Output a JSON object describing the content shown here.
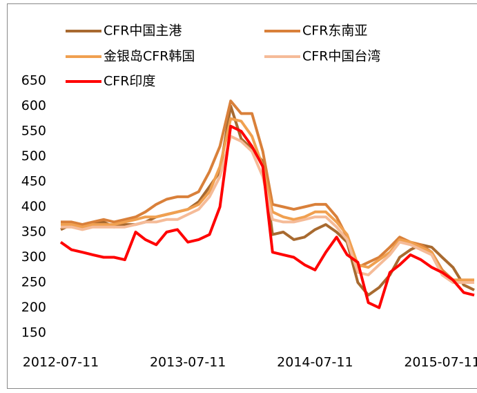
{
  "chart_data": {
    "type": "line",
    "x": [
      "2012-07-11",
      "2012-08-11",
      "2012-09-11",
      "2012-10-11",
      "2012-11-11",
      "2012-12-11",
      "2013-01-11",
      "2013-02-11",
      "2013-03-11",
      "2013-04-11",
      "2013-05-11",
      "2013-06-11",
      "2013-07-11",
      "2013-08-11",
      "2013-09-11",
      "2013-10-11",
      "2013-11-11",
      "2013-12-11",
      "2014-01-11",
      "2014-02-11",
      "2014-03-11",
      "2014-04-11",
      "2014-05-11",
      "2014-06-11",
      "2014-07-11",
      "2014-08-11",
      "2014-09-11",
      "2014-10-11",
      "2014-11-11",
      "2014-12-11",
      "2015-01-11",
      "2015-02-11",
      "2015-03-11",
      "2015-04-11",
      "2015-05-11",
      "2015-06-11",
      "2015-07-11",
      "2015-08-11",
      "2015-09-11",
      "2015-10-11"
    ],
    "series": [
      {
        "name": "CFR中国主港",
        "color": "#a86a30",
        "values": [
          355,
          365,
          365,
          365,
          370,
          360,
          365,
          365,
          370,
          380,
          385,
          390,
          395,
          410,
          440,
          470,
          600,
          535,
          515,
          490,
          345,
          350,
          335,
          340,
          355,
          365,
          350,
          330,
          250,
          225,
          240,
          265,
          300,
          315,
          325,
          320,
          300,
          280,
          245,
          235
        ]
      },
      {
        "name": "CFR东南亚",
        "color": "#d9803a",
        "values": [
          370,
          370,
          365,
          370,
          375,
          370,
          375,
          380,
          390,
          405,
          415,
          420,
          420,
          430,
          470,
          520,
          610,
          585,
          585,
          510,
          405,
          400,
          395,
          400,
          405,
          405,
          380,
          340,
          280,
          290,
          300,
          320,
          340,
          330,
          325,
          310,
          275,
          255,
          255,
          255
        ]
      },
      {
        "name": "金银岛CFR韩国",
        "color": "#f0a050",
        "values": [
          365,
          365,
          360,
          365,
          365,
          365,
          370,
          375,
          380,
          380,
          385,
          390,
          395,
          405,
          430,
          480,
          575,
          570,
          540,
          480,
          390,
          380,
          375,
          380,
          390,
          390,
          370,
          345,
          285,
          280,
          295,
          310,
          335,
          330,
          320,
          310,
          270,
          255,
          255,
          255
        ]
      },
      {
        "name": "CFR中国台湾",
        "color": "#f5bb98",
        "values": [
          360,
          360,
          355,
          360,
          360,
          360,
          360,
          365,
          370,
          370,
          375,
          375,
          385,
          395,
          420,
          460,
          540,
          530,
          510,
          460,
          375,
          370,
          370,
          375,
          380,
          380,
          360,
          335,
          270,
          265,
          285,
          305,
          330,
          325,
          315,
          305,
          265,
          250,
          250,
          250
        ]
      },
      {
        "name": "CFR印度",
        "color": "#ff0000",
        "values": [
          330,
          315,
          310,
          305,
          300,
          300,
          295,
          350,
          335,
          325,
          350,
          355,
          330,
          335,
          345,
          400,
          560,
          550,
          520,
          480,
          310,
          305,
          300,
          285,
          275,
          310,
          340,
          305,
          290,
          210,
          200,
          270,
          285,
          305,
          295,
          280,
          270,
          255,
          230,
          225
        ]
      }
    ],
    "xlim": [
      "2012-07-11",
      "2015-10-19"
    ],
    "xticks": [
      "2012-07-11",
      "2013-07-11",
      "2014-07-11",
      "2015-07-11"
    ],
    "ylim": [
      150,
      650
    ],
    "yticks": [
      150,
      200,
      250,
      300,
      350,
      400,
      450,
      500,
      550,
      600,
      650
    ],
    "legend": "top"
  }
}
